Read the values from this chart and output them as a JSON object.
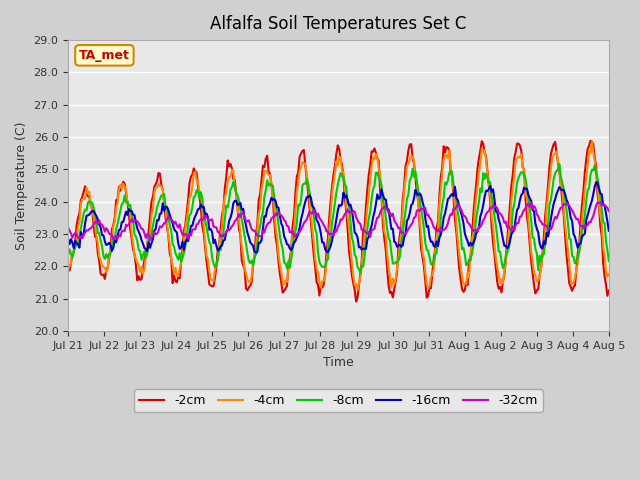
{
  "title": "Alfalfa Soil Temperatures Set C",
  "xlabel": "Time",
  "ylabel": "Soil Temperature (C)",
  "ylim": [
    20.0,
    29.0
  ],
  "yticks": [
    20.0,
    21.0,
    22.0,
    23.0,
    24.0,
    25.0,
    26.0,
    27.0,
    28.0,
    29.0
  ],
  "series": {
    "-2cm": {
      "color": "#dd0000",
      "lw": 1.5
    },
    "-4cm": {
      "color": "#ff8800",
      "lw": 1.5
    },
    "-8cm": {
      "color": "#00cc00",
      "lw": 1.5
    },
    "-16cm": {
      "color": "#0000cc",
      "lw": 1.5
    },
    "-32cm": {
      "color": "#cc00cc",
      "lw": 1.5
    }
  },
  "xtick_labels": [
    "Jul 21",
    "Jul 22",
    "Jul 23",
    "Jul 24",
    "Jul 25",
    "Jul 26",
    "Jul 27",
    "Jul 28",
    "Jul 29",
    "Jul 30",
    "Jul 31",
    "Aug 1",
    "Aug 2",
    "Aug 3",
    "Aug 4",
    "Aug 5"
  ],
  "n_days": 16,
  "annotation": "TA_met",
  "annotation_color": "#cc0000",
  "annotation_bg": "#ffffcc",
  "annotation_border": "#cc8800"
}
